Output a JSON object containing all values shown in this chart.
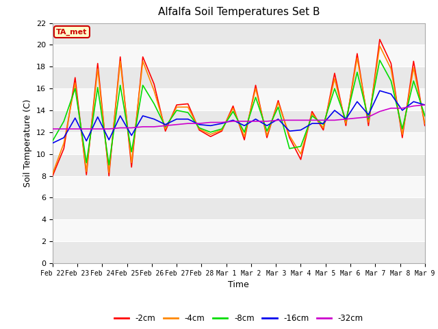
{
  "title": "Alfalfa Soil Temperatures Set B",
  "xlabel": "Time",
  "ylabel": "Soil Temperature (C)",
  "ylim": [
    0,
    22
  ],
  "yticks": [
    0,
    2,
    4,
    6,
    8,
    10,
    12,
    14,
    16,
    18,
    20,
    22
  ],
  "x_labels": [
    "Feb 22",
    "Feb 23",
    "Feb 24",
    "Feb 25",
    "Feb 26",
    "Feb 27",
    "Feb 28",
    "Mar 1",
    "Mar 2",
    "Mar 3",
    "Mar 4",
    "Mar 5",
    "Mar 6",
    "Mar 7",
    "Mar 8",
    "Mar 9"
  ],
  "figure_bg": "#ffffff",
  "plot_bg": "#ffffff",
  "band_colors": [
    "#e8e8e8",
    "#f8f8f8"
  ],
  "line_colors": {
    "-2cm": "#ff0000",
    "-4cm": "#ff8800",
    "-8cm": "#00dd00",
    "-16cm": "#0000ee",
    "-32cm": "#cc00cc"
  },
  "annotation_box": {
    "text": "TA_met",
    "facecolor": "#ffffcc",
    "edgecolor": "#cc0000",
    "textcolor": "#cc0000"
  },
  "series": {
    "-2cm": [
      8.0,
      10.5,
      17.0,
      8.1,
      18.3,
      8.0,
      18.9,
      8.8,
      18.9,
      16.4,
      12.1,
      14.5,
      14.6,
      12.2,
      11.6,
      12.1,
      14.4,
      11.3,
      16.3,
      11.5,
      14.9,
      11.5,
      9.5,
      13.9,
      12.2,
      17.4,
      12.6,
      19.2,
      12.6,
      20.5,
      18.3,
      11.5,
      18.5,
      12.6
    ],
    "-4cm": [
      8.2,
      11.0,
      16.5,
      8.4,
      17.8,
      8.3,
      18.5,
      9.2,
      18.5,
      15.8,
      12.3,
      14.3,
      14.3,
      12.3,
      11.8,
      12.2,
      14.2,
      11.6,
      16.0,
      11.7,
      14.7,
      11.7,
      10.0,
      13.7,
      12.4,
      16.9,
      12.8,
      18.8,
      12.9,
      19.9,
      17.8,
      11.8,
      17.9,
      12.8
    ],
    "-8cm": [
      11.2,
      13.0,
      16.0,
      9.2,
      16.1,
      9.0,
      16.3,
      10.2,
      16.3,
      14.6,
      12.5,
      14.0,
      13.8,
      12.4,
      12.0,
      12.3,
      13.9,
      12.0,
      15.2,
      12.1,
      14.3,
      10.5,
      10.7,
      13.5,
      12.7,
      16.0,
      13.1,
      17.5,
      13.2,
      18.6,
      16.7,
      12.3,
      16.7,
      13.5
    ],
    "-16cm": [
      11.0,
      11.5,
      13.3,
      11.2,
      13.4,
      11.3,
      13.5,
      11.7,
      13.5,
      13.2,
      12.7,
      13.2,
      13.2,
      12.7,
      12.6,
      12.8,
      13.1,
      12.6,
      13.2,
      12.6,
      13.2,
      12.1,
      12.2,
      12.8,
      12.8,
      14.0,
      13.2,
      14.8,
      13.6,
      15.8,
      15.5,
      14.0,
      14.8,
      14.5
    ],
    "-32cm": [
      12.3,
      12.3,
      12.3,
      12.3,
      12.3,
      12.3,
      12.4,
      12.4,
      12.5,
      12.5,
      12.6,
      12.7,
      12.8,
      12.8,
      12.9,
      12.9,
      13.0,
      13.0,
      13.0,
      13.0,
      13.1,
      13.1,
      13.1,
      13.1,
      13.1,
      13.1,
      13.2,
      13.3,
      13.4,
      13.9,
      14.2,
      14.2,
      14.4,
      14.5
    ]
  }
}
